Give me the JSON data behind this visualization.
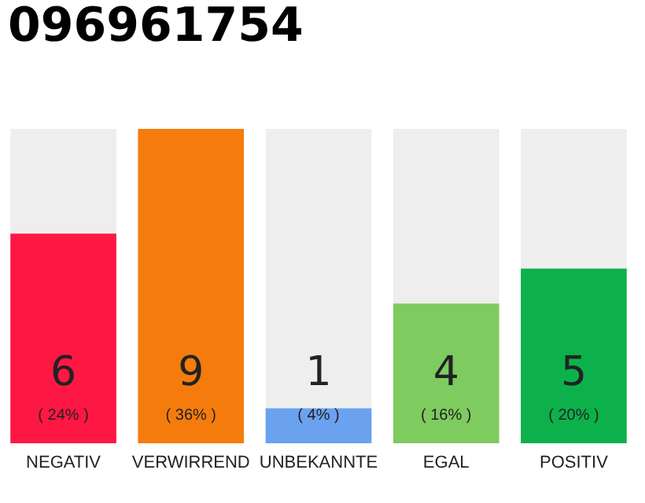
{
  "chart_data": {
    "type": "bar",
    "title": "096961754",
    "categories": [
      "NEGATIV",
      "VERWIRREND",
      "UNBEKANNTE",
      "EGAL",
      "POSITIV"
    ],
    "values": [
      6,
      9,
      1,
      4,
      5
    ],
    "colors": [
      "#ff1744",
      "#f57c0c",
      "#6aa2f0",
      "#7ecb5f",
      "#0db14b"
    ],
    "ylim": [
      0,
      9
    ],
    "tick_labels": "x",
    "grid": false,
    "data_labels": true,
    "annotations": [
      "( 24% )",
      "( 36% )",
      "( 4% )",
      "( 16% )",
      "( 20% )"
    ]
  }
}
